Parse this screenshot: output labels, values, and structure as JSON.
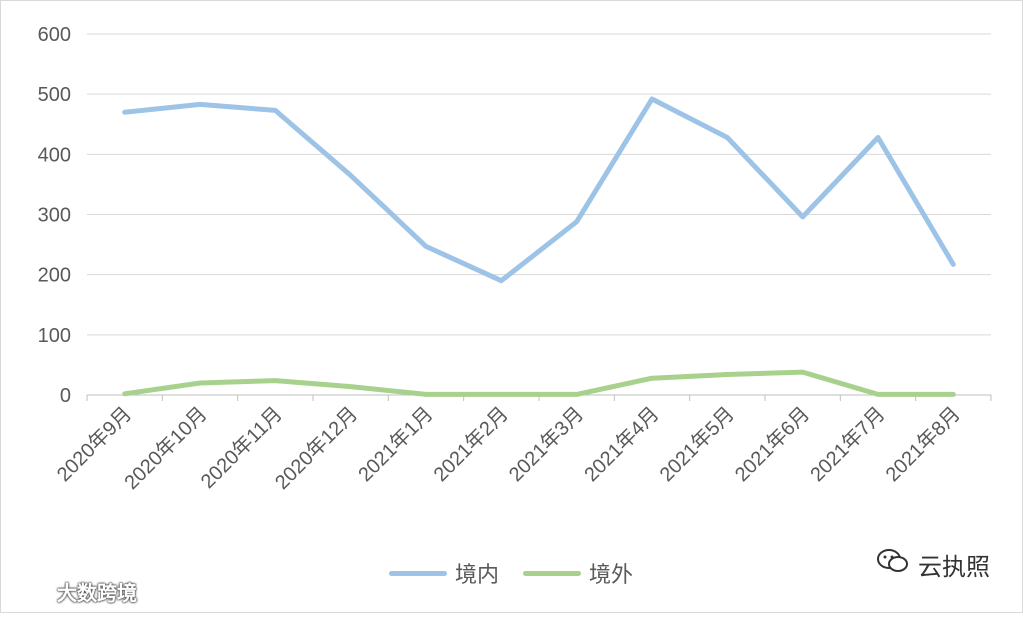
{
  "chart_data": {
    "type": "line",
    "categories": [
      "2020年9月",
      "2020年10月",
      "2020年11月",
      "2020年12月",
      "2021年1月",
      "2021年2月",
      "2021年3月",
      "2021年4月",
      "2021年5月",
      "2021年6月",
      "2021年7月",
      "2021年8月"
    ],
    "series": [
      {
        "name": "境内",
        "color": "#9dc3e6",
        "values": [
          470,
          483,
          473,
          365,
          247,
          190,
          288,
          492,
          428,
          296,
          428,
          217
        ]
      },
      {
        "name": "境外",
        "color": "#a9d18e",
        "values": [
          2,
          20,
          24,
          14,
          1,
          1,
          1,
          28,
          34,
          38,
          1,
          1
        ]
      }
    ],
    "ylim": [
      0,
      600
    ],
    "yticks": [
      0,
      100,
      200,
      300,
      400,
      500,
      600
    ],
    "grid": true,
    "legend_position": "bottom",
    "title": "",
    "xlabel": "",
    "ylabel": ""
  },
  "watermarks": {
    "left": "大数跨境",
    "right": "云执照",
    "left_icon": "link-icon",
    "right_icon": "wechat-icon"
  }
}
